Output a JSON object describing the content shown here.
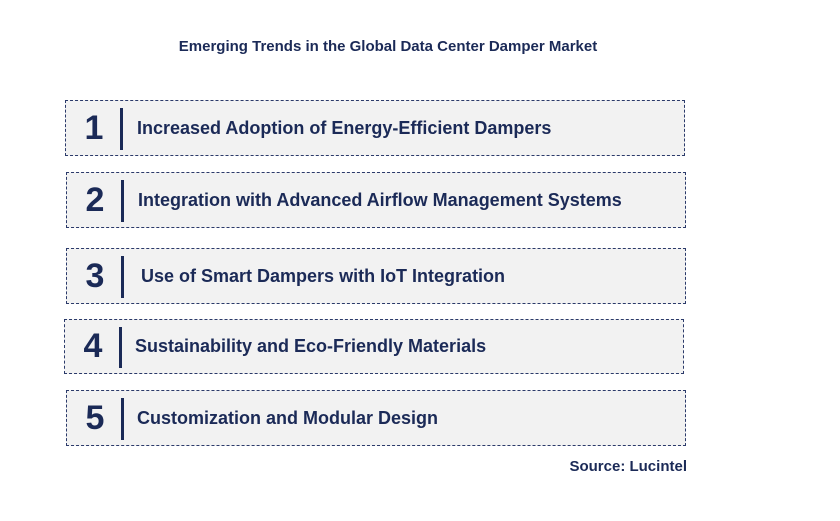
{
  "title": "Emerging Trends in the Global Data Center Damper Market",
  "trends": [
    {
      "number": "1",
      "label": "Increased Adoption of Energy-Efficient Dampers"
    },
    {
      "number": "2",
      "label": "Integration with Advanced Airflow Management Systems"
    },
    {
      "number": "3",
      "label": "Use of Smart Dampers with IoT Integration"
    },
    {
      "number": "4",
      "label": "Sustainability and Eco-Friendly Materials"
    },
    {
      "number": "5",
      "label": "Customization and Modular Design"
    }
  ],
  "source": "Source: Lucintel",
  "colors": {
    "text": "#1b2a57",
    "box_fill": "#f2f2f2",
    "box_border": "#2b3a6a"
  }
}
